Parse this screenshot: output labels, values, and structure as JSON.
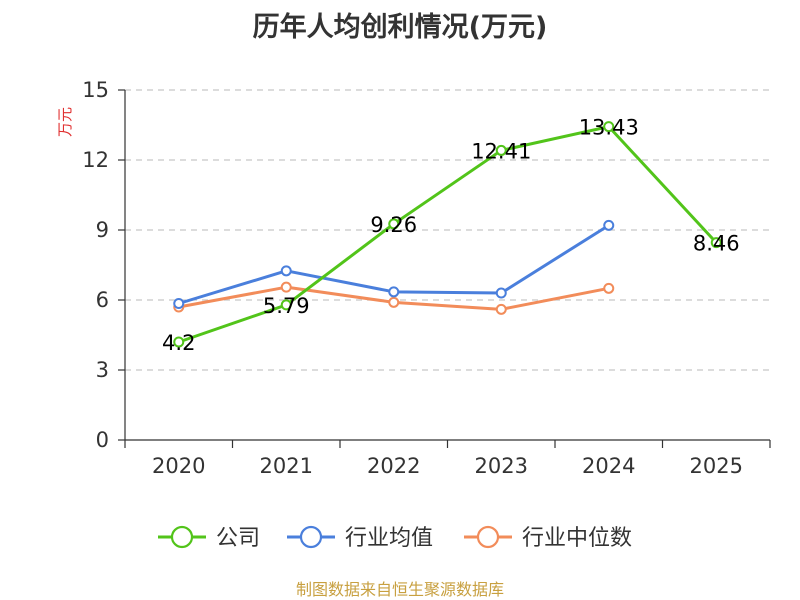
{
  "chart_data": {
    "type": "line",
    "title": "历年人均创利情况(万元)",
    "ylabel": "万元",
    "xlabel": "",
    "categories": [
      "2020",
      "2021",
      "2022",
      "2023",
      "2024",
      "2025"
    ],
    "ylim": [
      0,
      15
    ],
    "yticks": [
      0,
      3,
      6,
      9,
      12,
      15
    ],
    "grid": true,
    "series": [
      {
        "name": "公司",
        "color": "#52c41a",
        "values": [
          4.2,
          5.79,
          9.26,
          12.41,
          13.43,
          8.46
        ],
        "labels": [
          "4.2",
          "5.79",
          "9.26",
          "12.41",
          "13.43",
          "8.46"
        ]
      },
      {
        "name": "行业均值",
        "color": "#4a7fdc",
        "values": [
          5.85,
          7.25,
          6.35,
          6.3,
          9.2,
          null
        ]
      },
      {
        "name": "行业中位数",
        "color": "#f28c5a",
        "values": [
          5.7,
          6.55,
          5.9,
          5.6,
          6.5,
          null
        ]
      }
    ],
    "legend_position": "bottom"
  },
  "footer": {
    "source": "制图数据来自恒生聚源数据库"
  }
}
